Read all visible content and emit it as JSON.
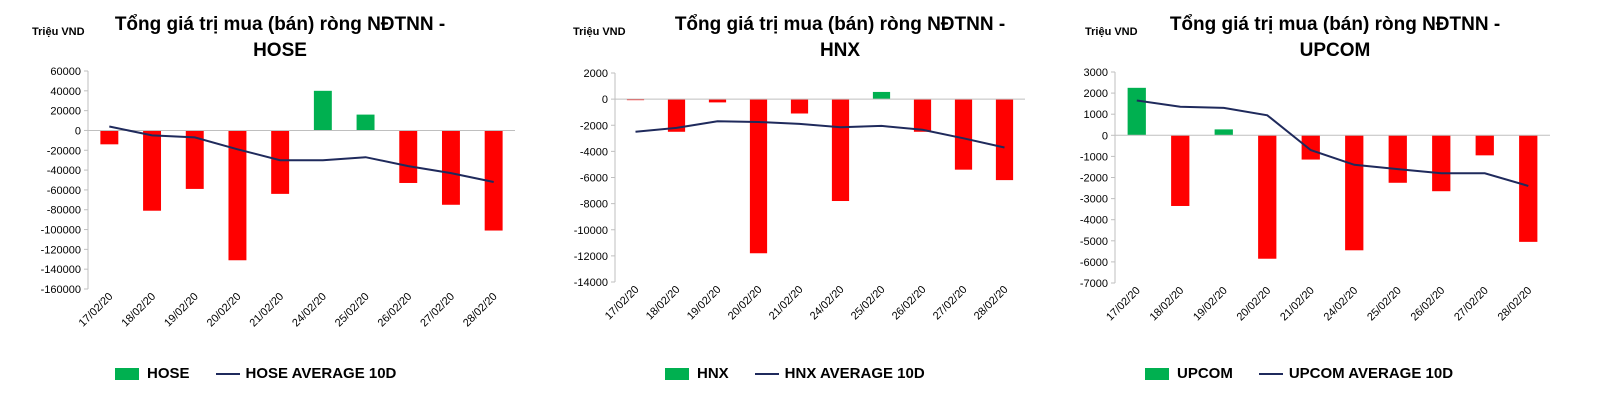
{
  "colors": {
    "positive": "#00b050",
    "negative": "#ff0000",
    "average": "#1f2a5c",
    "axis": "#bfbfbf"
  },
  "chart_data": [
    {
      "type": "bar",
      "title_line1": "Tổng giá trị mua (bán) ròng NĐTNN -",
      "title_line2": "HOSE",
      "unit_label": "Triệu VND",
      "categories": [
        "17/02/20",
        "18/02/20",
        "19/02/20",
        "20/02/20",
        "21/02/20",
        "24/02/20",
        "25/02/20",
        "26/02/20",
        "27/02/20",
        "28/02/20"
      ],
      "series": [
        {
          "name": "HOSE",
          "kind": "bar",
          "values": [
            -14000,
            -81000,
            -59000,
            -131000,
            -64000,
            40000,
            16000,
            -53000,
            -75000,
            -101000
          ]
        },
        {
          "name": "HOSE AVERAGE 10D",
          "kind": "line",
          "values": [
            4000,
            -5000,
            -7000,
            -19000,
            -30000,
            -30000,
            -27000,
            -36000,
            -43000,
            -52000
          ]
        }
      ],
      "yticks": [
        60000,
        40000,
        20000,
        0,
        -20000,
        -40000,
        -60000,
        -80000,
        -100000,
        -120000,
        -140000,
        -160000
      ],
      "ylim": [
        -160000,
        60000
      ]
    },
    {
      "type": "bar",
      "title_line1": "Tổng giá trị mua (bán) ròng NĐTNN -",
      "title_line2": "HNX",
      "unit_label": "Triệu VND",
      "categories": [
        "17/02/20",
        "18/02/20",
        "19/02/20",
        "20/02/20",
        "21/02/20",
        "24/02/20",
        "25/02/20",
        "26/02/20",
        "27/02/20",
        "28/02/20"
      ],
      "series": [
        {
          "name": "HNX",
          "kind": "bar",
          "values": [
            -80,
            -2500,
            -250,
            -11800,
            -1100,
            -7800,
            550,
            -2500,
            -5400,
            -6200
          ]
        },
        {
          "name": "HNX AVERAGE 10D",
          "kind": "line",
          "values": [
            -2500,
            -2200,
            -1700,
            -1750,
            -1900,
            -2150,
            -2050,
            -2350,
            -3000,
            -3700
          ]
        }
      ],
      "yticks": [
        2000,
        0,
        -2000,
        -4000,
        -6000,
        -8000,
        -10000,
        -12000,
        -14000
      ],
      "ylim": [
        -14000,
        2000
      ]
    },
    {
      "type": "bar",
      "title_line1": "Tổng giá trị mua (bán) ròng NĐTNN -",
      "title_line2": "UPCOM",
      "unit_label": "Triệu VND",
      "categories": [
        "17/02/20",
        "18/02/20",
        "19/02/20",
        "20/02/20",
        "21/02/20",
        "24/02/20",
        "25/02/20",
        "26/02/20",
        "27/02/20",
        "28/02/20"
      ],
      "series": [
        {
          "name": "UPCOM",
          "kind": "bar",
          "values": [
            2250,
            -3350,
            280,
            -5850,
            -1150,
            -5450,
            -2250,
            -2650,
            -950,
            -5050
          ]
        },
        {
          "name": "UPCOM AVERAGE 10D",
          "kind": "line",
          "values": [
            1650,
            1350,
            1300,
            950,
            -700,
            -1400,
            -1600,
            -1800,
            -1800,
            -2400
          ]
        }
      ],
      "yticks": [
        3000,
        2000,
        1000,
        0,
        -1000,
        -2000,
        -3000,
        -4000,
        -5000,
        -6000,
        -7000
      ],
      "ylim": [
        -7000,
        3000
      ]
    }
  ]
}
